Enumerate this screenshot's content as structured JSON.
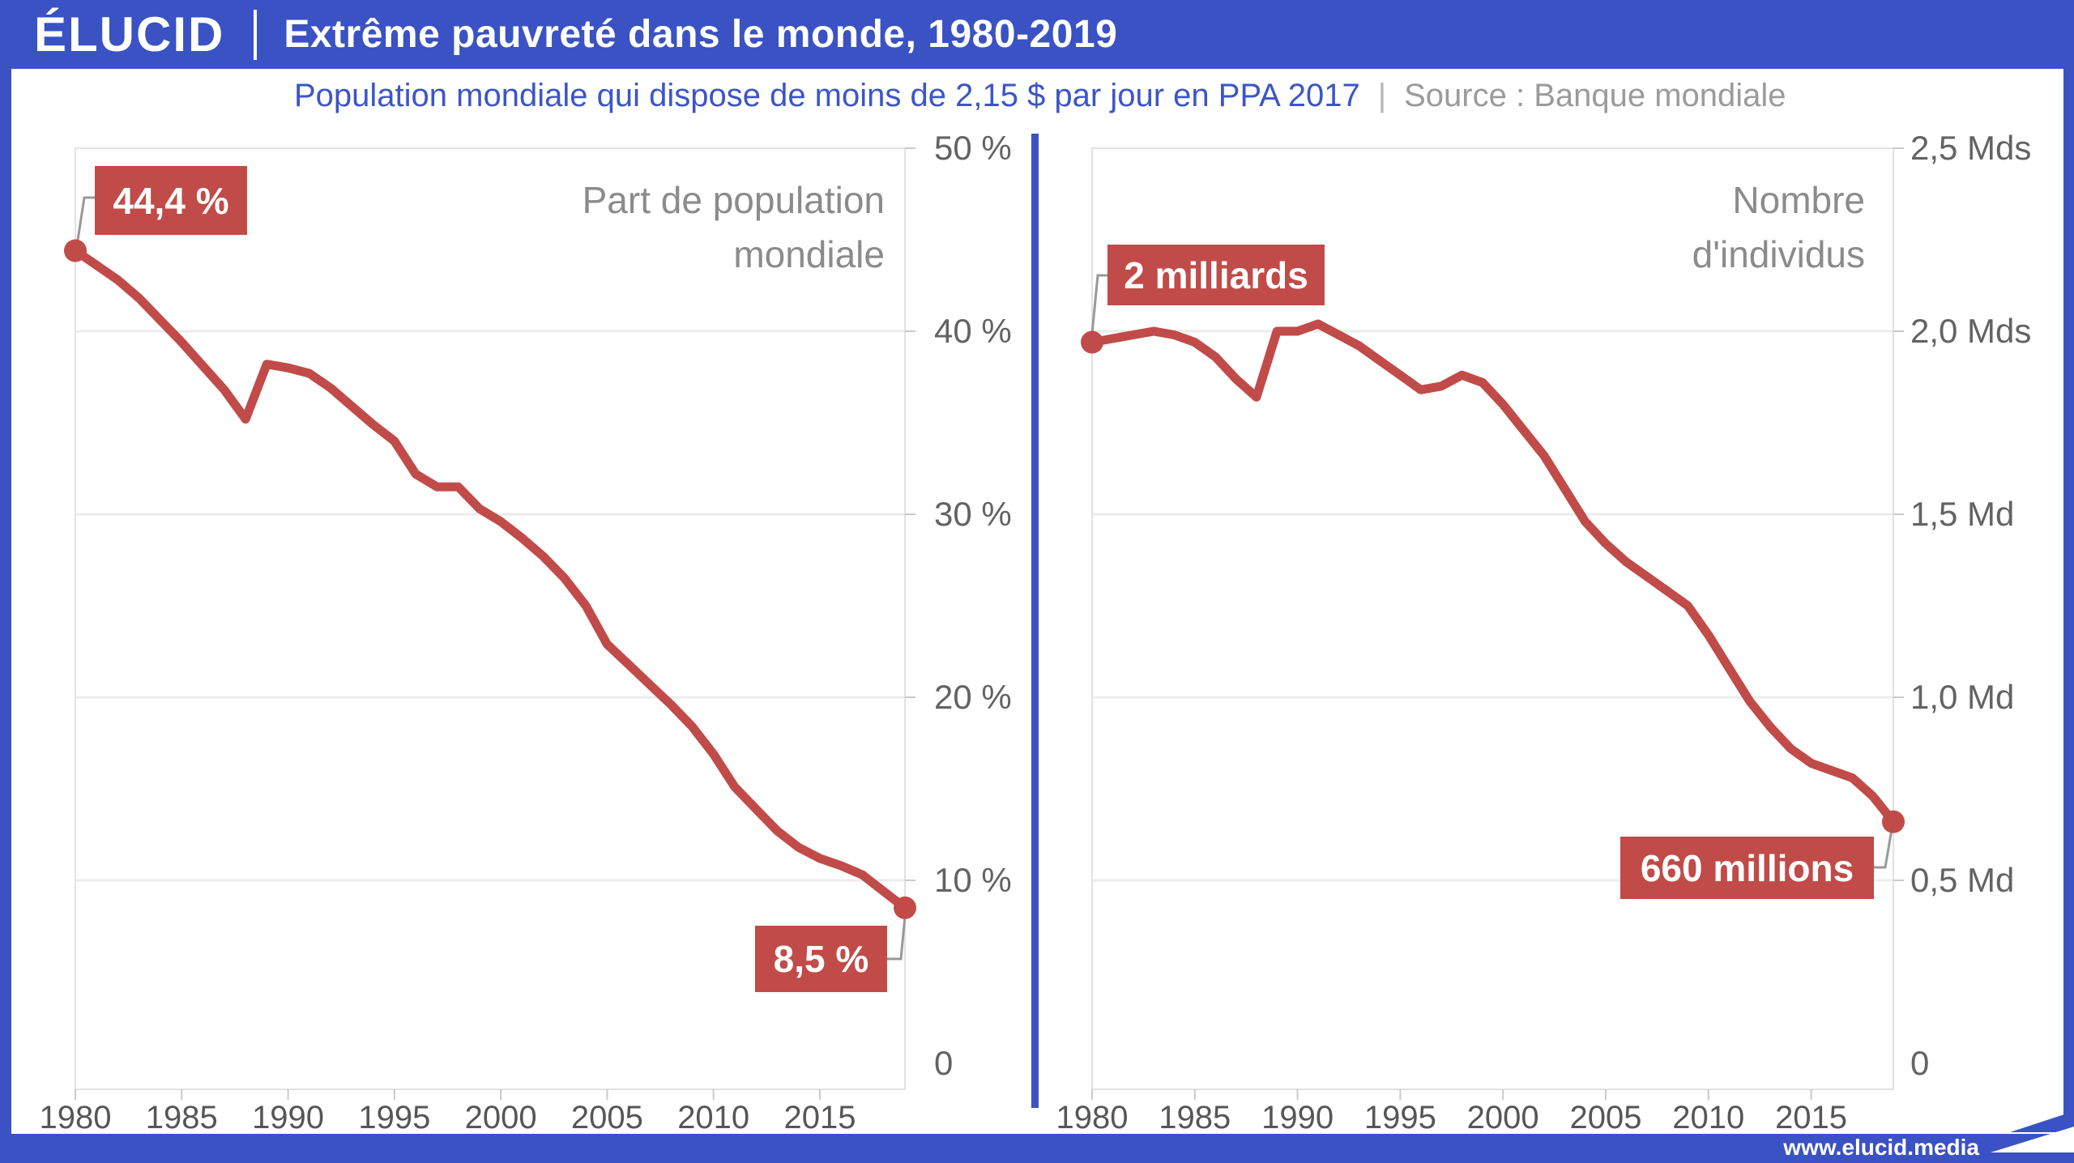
{
  "header": {
    "brand": "ÉLUCID",
    "title": "Extrême pauvreté dans le monde, 1980-2019"
  },
  "subtitle": {
    "text": "Population mondiale qui dispose de moins de 2,15 $ par jour en PPA 2017",
    "separator": "|",
    "source": "Source : Banque mondiale"
  },
  "footer": {
    "url": "www.elucid.media"
  },
  "colors": {
    "brand_blue": "#3a52c3",
    "subtitle_blue": "#3c55c8",
    "line_red": "#c14b48",
    "label_box_red": "#c14b48",
    "gridline": "#ececec",
    "plot_border": "#e2e2e2",
    "tick": "#c9c9c9",
    "axis_label_gray": "#636363",
    "chart_title_gray": "#8b8b8b",
    "source_gray": "#9b9b9b",
    "leader_gray": "#999999"
  },
  "chart_data": [
    {
      "type": "line",
      "title_lines": [
        "Part de population",
        "mondiale"
      ],
      "xlabel": "",
      "ylabel": "",
      "xlim": [
        1980,
        2019
      ],
      "ylim": [
        0,
        50
      ],
      "grid": true,
      "legend": "none",
      "years": [
        1980,
        1981,
        1982,
        1983,
        1984,
        1985,
        1986,
        1987,
        1988,
        1989,
        1990,
        1991,
        1992,
        1993,
        1994,
        1995,
        1996,
        1997,
        1998,
        1999,
        2000,
        2001,
        2002,
        2003,
        2004,
        2005,
        2006,
        2007,
        2008,
        2009,
        2010,
        2011,
        2012,
        2013,
        2014,
        2015,
        2016,
        2017,
        2018,
        2019
      ],
      "values": [
        44.4,
        43.6,
        42.8,
        41.8,
        40.6,
        39.4,
        38.1,
        36.8,
        35.2,
        38.2,
        38.0,
        37.7,
        36.9,
        35.9,
        34.9,
        34.0,
        32.2,
        31.5,
        31.5,
        30.3,
        29.6,
        28.7,
        27.7,
        26.5,
        25.0,
        22.9,
        21.8,
        20.7,
        19.6,
        18.4,
        16.9,
        15.1,
        13.9,
        12.7,
        11.8,
        11.2,
        10.8,
        10.3,
        9.4,
        8.5
      ],
      "y_ticks": [
        {
          "v": 50,
          "label": "50 %"
        },
        {
          "v": 40,
          "label": "40 %"
        },
        {
          "v": 30,
          "label": "30 %"
        },
        {
          "v": 20,
          "label": "20 %"
        },
        {
          "v": 10,
          "label": "10 %"
        },
        {
          "v": 0,
          "label": "0"
        }
      ],
      "x_ticks": [
        1980,
        1985,
        1990,
        1995,
        2000,
        2005,
        2010,
        2015
      ],
      "annotations": [
        {
          "label": "44,4 %",
          "year": 1980,
          "value": 44.4
        },
        {
          "label": "8,5 %",
          "year": 2019,
          "value": 8.5
        }
      ]
    },
    {
      "type": "line",
      "title_lines": [
        "Nombre",
        "d'individus"
      ],
      "xlabel": "",
      "ylabel": "",
      "xlim": [
        1980,
        2019
      ],
      "ylim": [
        0,
        2.5
      ],
      "grid": true,
      "legend": "none",
      "years": [
        1980,
        1981,
        1982,
        1983,
        1984,
        1985,
        1986,
        1987,
        1988,
        1989,
        1990,
        1991,
        1992,
        1993,
        1994,
        1995,
        1996,
        1997,
        1998,
        1999,
        2000,
        2001,
        2002,
        2003,
        2004,
        2005,
        2006,
        2007,
        2008,
        2009,
        2010,
        2011,
        2012,
        2013,
        2014,
        2015,
        2016,
        2017,
        2018,
        2019
      ],
      "values": [
        1.97,
        1.98,
        1.99,
        2.0,
        1.99,
        1.97,
        1.93,
        1.87,
        1.82,
        2.0,
        2.0,
        2.02,
        1.99,
        1.96,
        1.92,
        1.88,
        1.84,
        1.85,
        1.88,
        1.86,
        1.8,
        1.73,
        1.66,
        1.57,
        1.48,
        1.42,
        1.37,
        1.33,
        1.29,
        1.25,
        1.17,
        1.08,
        0.99,
        0.92,
        0.86,
        0.82,
        0.8,
        0.78,
        0.73,
        0.66
      ],
      "y_ticks": [
        {
          "v": 2.5,
          "label": "2,5 Mds"
        },
        {
          "v": 2.0,
          "label": "2,0 Mds"
        },
        {
          "v": 1.5,
          "label": "1,5 Md"
        },
        {
          "v": 1.0,
          "label": "1,0 Md"
        },
        {
          "v": 0.5,
          "label": "0,5 Md"
        },
        {
          "v": 0,
          "label": "0"
        }
      ],
      "x_ticks": [
        1980,
        1985,
        1990,
        1995,
        2000,
        2005,
        2010,
        2015
      ],
      "annotations": [
        {
          "label": "2 milliards",
          "year": 1980,
          "value": 1.97
        },
        {
          "label": "660 millions",
          "year": 2019,
          "value": 0.66
        }
      ]
    }
  ]
}
